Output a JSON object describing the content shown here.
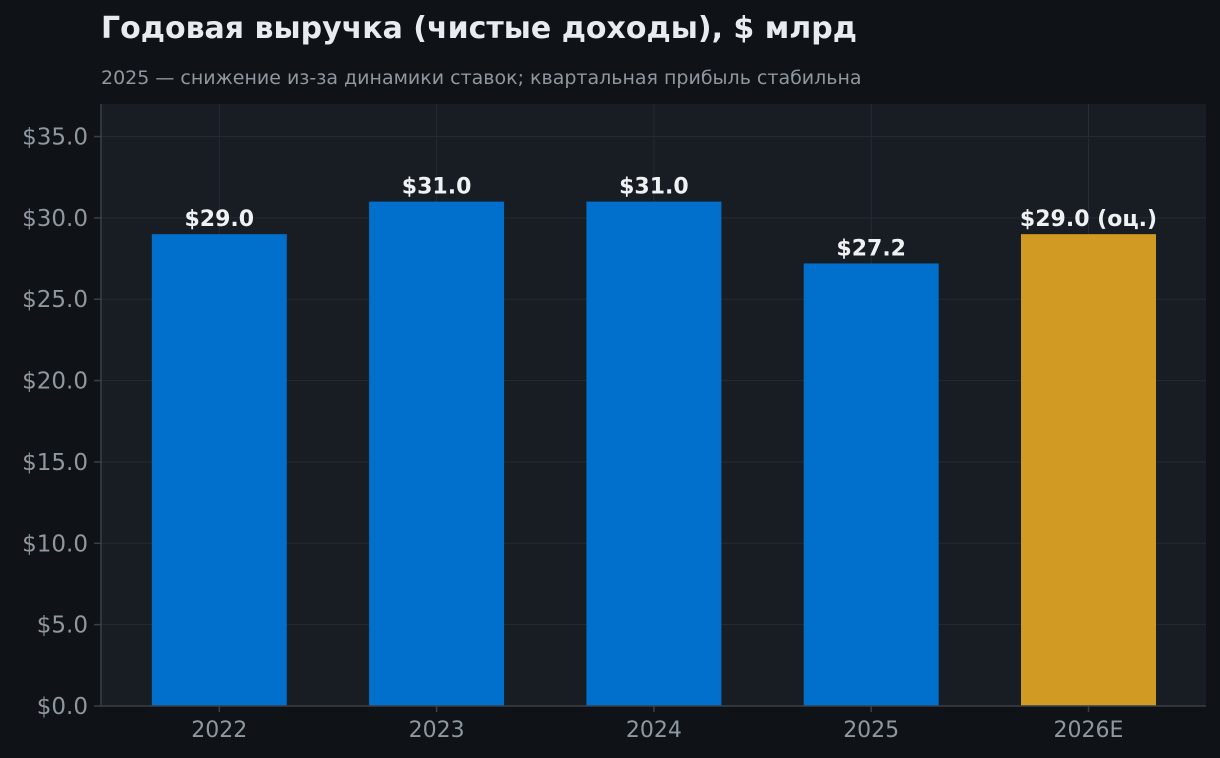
{
  "chart_data": {
    "type": "bar",
    "title": "Годовая выручка (чистые доходы), $ млрд",
    "subtitle": "2025 — снижение из-за динамики ставок; квартальная прибыль стабильна",
    "xlabel": "",
    "ylabel": "",
    "categories": [
      "2022",
      "2023",
      "2024",
      "2025",
      "2026E"
    ],
    "values": [
      29.0,
      31.0,
      31.0,
      27.2,
      29.0
    ],
    "data_labels": [
      "$29.0",
      "$31.0",
      "$31.0",
      "$27.2",
      "$29.0 (оц.)"
    ],
    "bar_colors": [
      "#0070cc",
      "#0070cc",
      "#0070cc",
      "#0070cc",
      "#d19a22"
    ],
    "ylim": [
      0,
      37
    ],
    "yticks": [
      0,
      5,
      10,
      15,
      20,
      25,
      30,
      35
    ],
    "ytick_labels": [
      "$0.0",
      "$5.0",
      "$10.0",
      "$15.0",
      "$20.0",
      "$25.0",
      "$30.0",
      "$35.0"
    ],
    "grid": true,
    "legend": "none",
    "colors": {
      "background": "#0f1317",
      "plot_background": "#181c23",
      "grid": "#262b33",
      "axis": "#3a4048",
      "text_muted": "#8f979f",
      "text_bright": "#e8ecf0"
    }
  }
}
